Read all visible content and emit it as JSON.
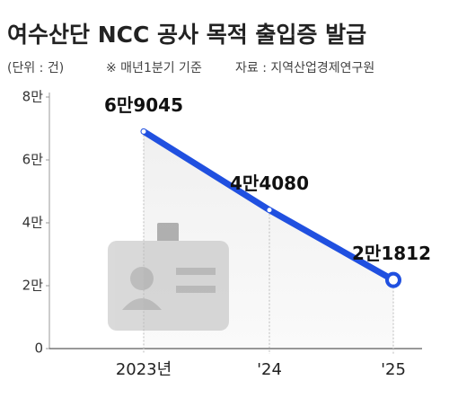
{
  "chart_data": {
    "type": "line",
    "title": "여수산단 NCC 공사 목적 출입증 발급",
    "unit": "(단위 : 건)",
    "note": "※ 매년1분기 기준",
    "source": "자료 : 지역산업경제연구원",
    "categories": [
      "2023년",
      "'24",
      "'25"
    ],
    "values": [
      69045,
      44080,
      21812
    ],
    "value_labels": [
      "6만9045",
      "4만4080",
      "2만1812"
    ],
    "color": "#2050e0",
    "ylim": [
      0,
      80000
    ],
    "yticks": [
      0,
      {
        "value": 20000,
        "label": "2만"
      },
      {
        "value": 40000,
        "label": "4만"
      },
      {
        "value": 60000,
        "label": "6만"
      },
      {
        "value": 80000,
        "label": "8만"
      }
    ]
  }
}
